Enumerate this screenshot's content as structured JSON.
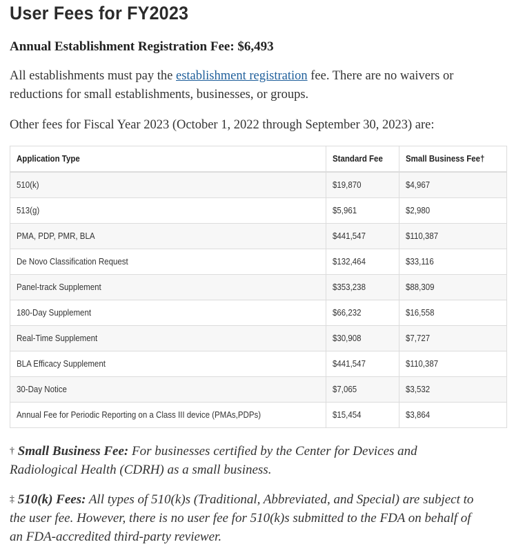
{
  "title": "User Fees for FY2023",
  "registration_fee_heading": "Annual Establishment Registration Fee: $6,493",
  "intro": {
    "pre": "All establishments must pay the ",
    "link": "establishment registration",
    "post_line1": " fee. There are no waivers or",
    "line2": "reductions for small establishments, businesses, or groups."
  },
  "other_fees_line": "Other fees for Fiscal Year 2023 (October 1, 2022 through September 30, 2023) are:",
  "table": {
    "headers": [
      "Application Type",
      "Standard Fee",
      "Small Business Fee†"
    ],
    "rows": [
      [
        "510(k)",
        "$19,870",
        "$4,967"
      ],
      [
        "513(g)",
        "$5,961",
        "$2,980"
      ],
      [
        "PMA, PDP, PMR, BLA",
        "$441,547",
        "$110,387"
      ],
      [
        "De Novo Classification Request",
        "$132,464",
        "$33,116"
      ],
      [
        "Panel-track Supplement",
        "$353,238",
        "$88,309"
      ],
      [
        "180-Day Supplement",
        "$66,232",
        "$16,558"
      ],
      [
        "Real-Time Supplement",
        "$30,908",
        "$7,727"
      ],
      [
        "BLA Efficacy Supplement",
        "$441,547",
        "$110,387"
      ],
      [
        "30-Day Notice",
        "$7,065",
        "$3,532"
      ],
      [
        "Annual Fee for Periodic Reporting on a Class III device (PMAs,PDPs)",
        "$15,454",
        "$3,864"
      ]
    ]
  },
  "notes": {
    "small_business": {
      "mark": "†",
      "label": "Small Business Fee:",
      "text_line1": " For businesses certified by the Center for Devices and",
      "text_line2": "Radiological Health (CDRH) as a small business."
    },
    "fees_510k": {
      "mark": "‡",
      "label": "510(k) Fees:",
      "text_line1": " All types of 510(k)s (Traditional, Abbreviated, and Special) are subject to",
      "text_line2": "the user fee. However, there is no user fee for 510(k)s submitted to the FDA on behalf of",
      "text_line3": "an FDA-accredited third-party reviewer."
    }
  }
}
